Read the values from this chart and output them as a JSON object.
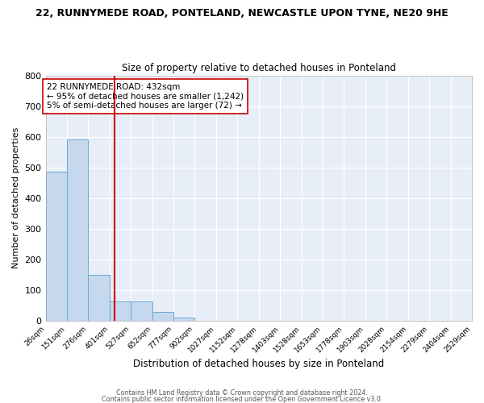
{
  "title_line1": "22, RUNNYMEDE ROAD, PONTELAND, NEWCASTLE UPON TYNE, NE20 9HE",
  "title_line2": "Size of property relative to detached houses in Ponteland",
  "xlabel": "Distribution of detached houses by size in Ponteland",
  "ylabel": "Number of detached properties",
  "bar_edges": [
    26,
    151,
    276,
    401,
    527,
    652,
    777,
    902,
    1027,
    1152,
    1278,
    1403,
    1528,
    1653,
    1778,
    1903,
    2028,
    2154,
    2279,
    2404,
    2529
  ],
  "bar_heights": [
    487,
    592,
    150,
    63,
    63,
    30,
    10,
    0,
    0,
    0,
    0,
    0,
    0,
    0,
    0,
    0,
    0,
    0,
    0,
    0
  ],
  "bar_color": "#c5d8ee",
  "bar_edge_color": "#6aaad4",
  "property_size": 432,
  "vline_color": "#cc0000",
  "annotation_text": "22 RUNNYMEDE ROAD: 432sqm\n← 95% of detached houses are smaller (1,242)\n5% of semi-detached houses are larger (72) →",
  "annotation_box_color": "white",
  "annotation_box_edge": "#cc0000",
  "ylim": [
    0,
    800
  ],
  "yticks": [
    0,
    100,
    200,
    300,
    400,
    500,
    600,
    700,
    800
  ],
  "background_color": "#e8eef8",
  "grid_color": "#d0d8e8",
  "footer_line1": "Contains HM Land Registry data © Crown copyright and database right 2024.",
  "footer_line2": "Contains public sector information licensed under the Open Government Licence v3.0."
}
